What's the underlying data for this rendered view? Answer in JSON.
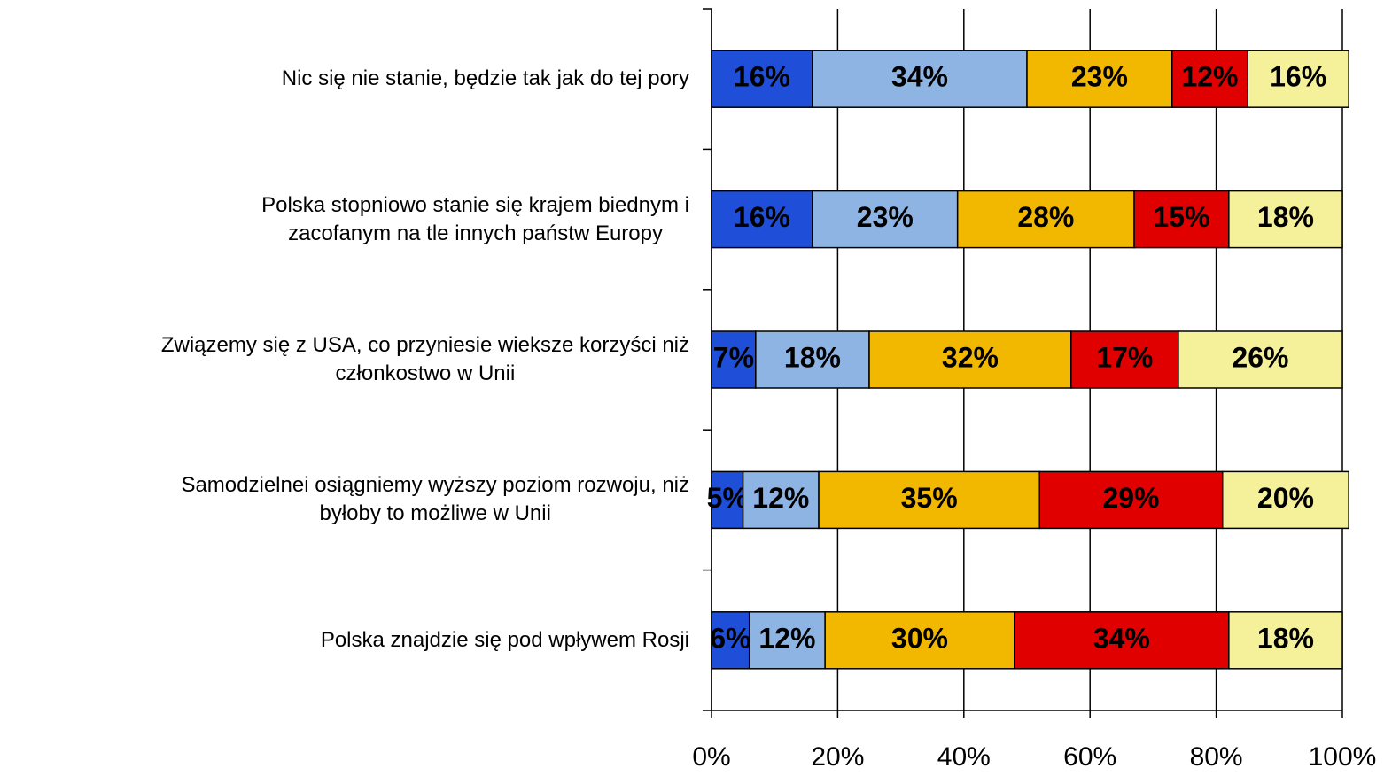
{
  "chart_data": {
    "type": "stacked-barh",
    "categories": [
      "Nic się nie stanie, będzie tak jak do tej pory",
      "Polska stopniowo stanie się krajem biednym i\nzacofanym na tle innych państw Europy",
      "Związemy się z USA, co przyniesie wieksze korzyści niż\nczłonkostwo w Unii",
      "Samodzielnei osiągniemy wyższy poziom rozwoju, niż\nbyłoby to możliwe w Unii",
      "Polska znajdzie się pod wpływem Rosji"
    ],
    "series": [
      {
        "color": "#1f4fd8",
        "values": [
          16,
          16,
          7,
          5,
          6
        ],
        "value_labels": [
          "16%",
          "16%",
          "7%",
          "5%",
          "6%"
        ]
      },
      {
        "color": "#8db4e2",
        "values": [
          34,
          23,
          18,
          12,
          12
        ],
        "value_labels": [
          "34%",
          "23%",
          "18%",
          "12%",
          "12%"
        ]
      },
      {
        "color": "#f2b800",
        "values": [
          23,
          28,
          32,
          35,
          30
        ],
        "value_labels": [
          "23%",
          "28%",
          "32%",
          "35%",
          "30%"
        ]
      },
      {
        "color": "#e00000",
        "values": [
          12,
          15,
          17,
          29,
          34
        ],
        "value_labels": [
          "12%",
          "15%",
          "17%",
          "29%",
          "34%"
        ]
      },
      {
        "color": "#f5f09a",
        "values": [
          16,
          18,
          26,
          20,
          18
        ],
        "value_labels": [
          "16%",
          "18%",
          "26%",
          "20%",
          "18%"
        ]
      }
    ],
    "xlim": [
      0,
      100
    ],
    "xticks": [
      {
        "value": 0,
        "label": "0%"
      },
      {
        "value": 20,
        "label": "20%"
      },
      {
        "value": 40,
        "label": "40%"
      },
      {
        "value": 60,
        "label": "60%"
      },
      {
        "value": 80,
        "label": "80%"
      },
      {
        "value": 100,
        "label": "100%"
      }
    ],
    "grid": true
  }
}
